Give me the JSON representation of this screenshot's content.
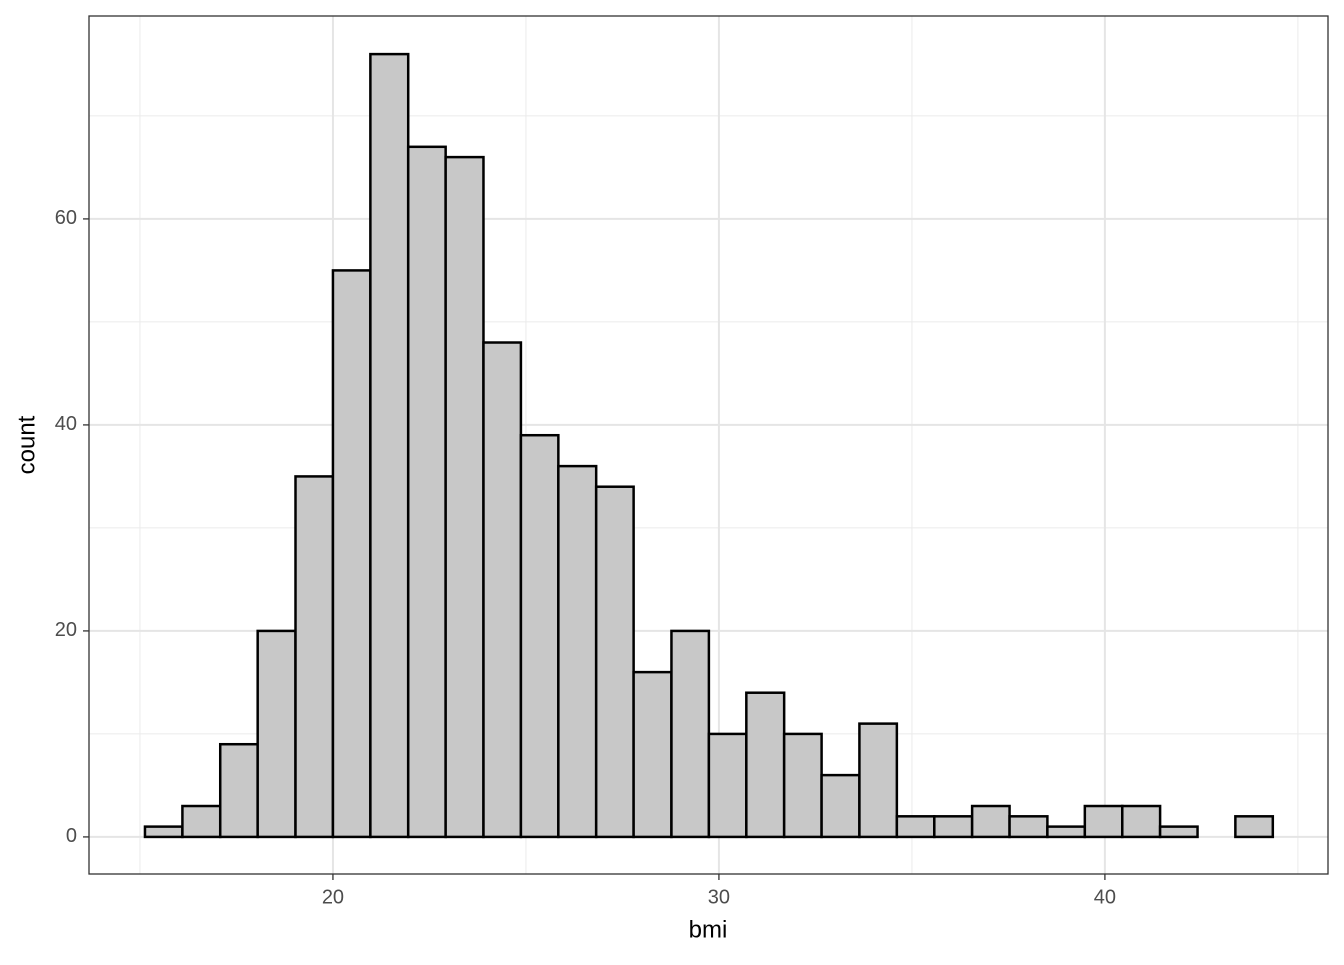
{
  "chart_data": {
    "type": "histogram",
    "xlabel": "bmi",
    "ylabel": "count",
    "bins": [
      15.13,
      16.1,
      17.08,
      18.05,
      19.03,
      20.0,
      20.97,
      21.95,
      22.92,
      23.9,
      24.87,
      25.84,
      26.82,
      27.79,
      28.77,
      29.74,
      30.71,
      31.69,
      32.66,
      33.64,
      34.61,
      35.58,
      36.56,
      37.53,
      38.51,
      39.48,
      40.45,
      41.43,
      42.4,
      43.38,
      44.35
    ],
    "values": [
      1,
      3,
      9,
      20,
      35,
      55,
      76,
      67,
      66,
      48,
      39,
      36,
      34,
      16,
      20,
      10,
      14,
      10,
      6,
      11,
      2,
      2,
      3,
      2,
      1,
      3,
      3,
      1,
      0,
      2
    ],
    "color": "#c8c8c8",
    "edgecolor": "#000000",
    "xlim": [
      13.68,
      45.78
    ],
    "xticks": [
      20,
      30,
      40
    ],
    "xminor": [
      15,
      25,
      35,
      45
    ],
    "ylim": [
      -3.6,
      79.7
    ],
    "yticks": [
      0,
      20,
      40,
      60
    ],
    "yminor": [
      10,
      30,
      50,
      70
    ],
    "grid": true
  }
}
